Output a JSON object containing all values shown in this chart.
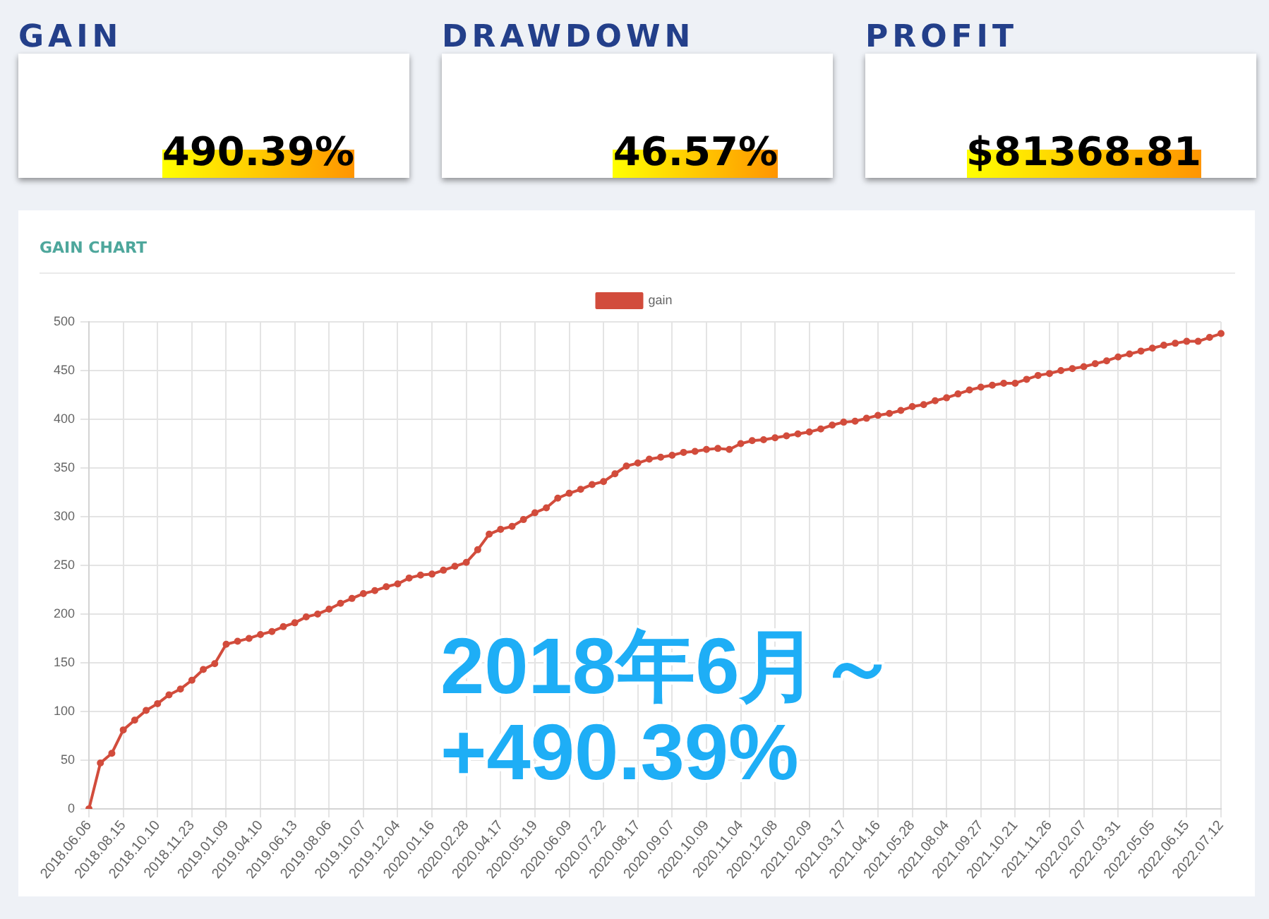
{
  "chart_data": [
    {
      "type": "other",
      "title": "GAIN",
      "annotations": [
        "490.39%"
      ]
    },
    {
      "type": "other",
      "title": "DRAWDOWN",
      "annotations": [
        "46.57%"
      ]
    },
    {
      "type": "other",
      "title": "PROFIT",
      "annotations": [
        "$81368.81"
      ]
    },
    {
      "type": "line",
      "title": "GAIN CHART",
      "categories": [
        "2018.06.06",
        null,
        null,
        "2018.08.15",
        null,
        null,
        "2018.10.10",
        null,
        null,
        "2018.11.23",
        null,
        null,
        "2019.01.09",
        null,
        null,
        "2019.04.10",
        null,
        null,
        "2019.06.13",
        null,
        null,
        "2019.08.06",
        null,
        null,
        "2019.10.07",
        null,
        null,
        "2019.12.04",
        null,
        null,
        "2020.01.16",
        null,
        null,
        "2020.02.28",
        null,
        null,
        "2020.04.17",
        null,
        null,
        "2020.05.19",
        null,
        null,
        "2020.06.09",
        null,
        null,
        "2020.07.22",
        null,
        null,
        "2020.08.17",
        null,
        null,
        "2020.09.07",
        null,
        null,
        "2020.10.09",
        null,
        null,
        "2020.11.04",
        null,
        null,
        "2020.12.08",
        null,
        null,
        "2021.02.09",
        null,
        null,
        "2021.03.17",
        null,
        null,
        "2021.04.16",
        null,
        null,
        "2021.05.28",
        null,
        null,
        "2021.08.04",
        null,
        null,
        "2021.09.27",
        null,
        null,
        "2021.10.21",
        null,
        null,
        "2021.11.26",
        null,
        null,
        "2022.02.07",
        null,
        null,
        "2022.03.31",
        null,
        null,
        "2022.05.05",
        null,
        null,
        "2022.06.15",
        null,
        null,
        "2022.07.12"
      ],
      "series": [
        {
          "name": "gain",
          "color": "#d24c3c",
          "values": [
            0,
            47,
            57,
            81,
            91,
            101,
            108,
            117,
            123,
            132,
            143,
            149,
            169,
            172,
            175,
            179,
            182,
            187,
            191,
            197,
            200,
            205,
            211,
            216,
            221,
            224,
            228,
            231,
            237,
            240,
            241,
            245,
            249,
            253,
            266,
            282,
            287,
            290,
            297,
            304,
            309,
            319,
            324,
            328,
            333,
            336,
            344,
            352,
            355,
            359,
            361,
            363,
            366,
            367,
            369,
            370,
            369,
            375,
            378,
            379,
            381,
            383,
            385,
            387,
            390,
            394,
            397,
            398,
            401,
            404,
            406,
            409,
            413,
            415,
            419,
            422,
            426,
            430,
            433,
            435,
            437,
            437,
            441,
            445,
            447,
            450,
            452,
            454,
            457,
            460,
            464,
            467,
            470,
            473,
            476,
            478,
            480,
            480,
            484,
            488
          ]
        }
      ],
      "ylim": [
        0,
        500
      ],
      "yticks": [
        0,
        50,
        100,
        150,
        200,
        250,
        300,
        350,
        400,
        450,
        500
      ],
      "grid": true,
      "legend": "top",
      "marker": "circle",
      "line_style": "solid",
      "annotations": [
        "2018年6月～",
        "+490.39%"
      ]
    }
  ]
}
